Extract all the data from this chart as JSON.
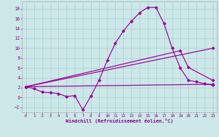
{
  "xlabel": "Windchill (Refroidissement éolien,°C)",
  "background_color": "#cce8e8",
  "grid_color": "#aacccc",
  "line_color": "#990099",
  "xlim": [
    -0.5,
    23.5
  ],
  "ylim": [
    -3.0,
    19.5
  ],
  "xticks": [
    0,
    1,
    2,
    3,
    4,
    5,
    6,
    7,
    8,
    9,
    10,
    11,
    12,
    13,
    14,
    15,
    16,
    17,
    18,
    19,
    20,
    21,
    22,
    23
  ],
  "yticks": [
    -2,
    0,
    2,
    4,
    6,
    8,
    10,
    12,
    14,
    16,
    18
  ],
  "curve1_x": [
    0,
    1,
    2,
    3,
    4,
    5,
    6,
    7,
    8,
    9,
    10,
    11,
    12,
    13,
    14,
    15,
    16,
    17,
    18,
    19,
    20,
    21,
    22,
    23
  ],
  "curve1_y": [
    2.2,
    1.8,
    1.1,
    1.0,
    0.8,
    0.2,
    0.4,
    -2.5,
    0.3,
    3.5,
    7.5,
    11.0,
    13.5,
    15.5,
    17.2,
    18.3,
    18.3,
    15.0,
    10.0,
    6.0,
    3.5,
    3.2,
    2.8,
    2.5
  ],
  "curve2_x": [
    0,
    23
  ],
  "curve2_y": [
    2.2,
    2.7
  ],
  "curve3_x": [
    0,
    19,
    20,
    23
  ],
  "curve3_y": [
    2.2,
    9.5,
    6.1,
    3.5
  ],
  "curve4_x": [
    0,
    23
  ],
  "curve4_y": [
    2.2,
    10.0
  ]
}
